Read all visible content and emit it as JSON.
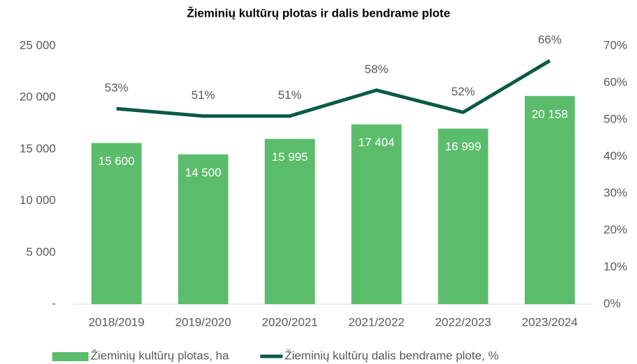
{
  "chart_data": {
    "type": "combo",
    "title": "Žieminių kultūrų plotas ir dalis bendrame plote",
    "categories": [
      "2018/2019",
      "2019/2020",
      "2020/2021",
      "2021/2022",
      "2022/2023",
      "2023/2024"
    ],
    "series": [
      {
        "name": "Žieminių kultūrų plotas, ha",
        "type": "bar",
        "color": "#5bbd6b",
        "values": [
          15600,
          14500,
          15995,
          17404,
          16999,
          20158
        ],
        "value_labels": [
          "15 600",
          "14 500",
          "15 995",
          "17 404",
          "16 999",
          "20 158"
        ]
      },
      {
        "name": "Žieminių kultūrų dalis bendrame plote, %",
        "type": "line",
        "axis": "y2",
        "color": "#0b5a45",
        "values": [
          53,
          51,
          51,
          58,
          52,
          66
        ],
        "value_labels": [
          "53%",
          "51%",
          "51%",
          "58%",
          "52%",
          "66%"
        ]
      }
    ],
    "ylim": [
      0,
      25000
    ],
    "yticks": [
      {
        "value": 0,
        "label": "-"
      },
      {
        "value": 5000,
        "label": "5 000"
      },
      {
        "value": 10000,
        "label": "10 000"
      },
      {
        "value": 15000,
        "label": "15 000"
      },
      {
        "value": 20000,
        "label": "20 000"
      },
      {
        "value": 25000,
        "label": "25 000"
      }
    ],
    "y2lim": [
      0,
      70
    ],
    "y2ticks": [
      {
        "value": 0,
        "label": "0%"
      },
      {
        "value": 10,
        "label": "10%"
      },
      {
        "value": 20,
        "label": "20%"
      },
      {
        "value": 30,
        "label": "30%"
      },
      {
        "value": 40,
        "label": "40%"
      },
      {
        "value": 50,
        "label": "50%"
      },
      {
        "value": 60,
        "label": "60%"
      },
      {
        "value": 70,
        "label": "70%"
      }
    ],
    "grid": false,
    "legend": "bottom"
  }
}
